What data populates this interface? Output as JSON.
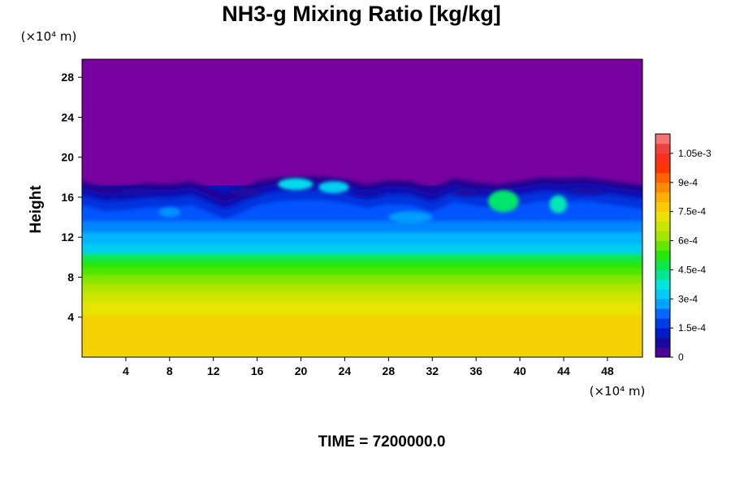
{
  "chart_data": {
    "type": "heatmap",
    "title": "NH3-g Mixing Ratio [kg/kg]",
    "ylabel": "Height",
    "x_unit": "(×10⁴ m)",
    "y_unit": "(×10⁴ m)",
    "footer": "TIME = 7200000.0",
    "x_ticks": [
      "4",
      "8",
      "12",
      "16",
      "20",
      "24",
      "28",
      "32",
      "36",
      "40",
      "44",
      "48"
    ],
    "x_tick_values": [
      4,
      8,
      12,
      16,
      20,
      24,
      28,
      32,
      36,
      40,
      44,
      48
    ],
    "y_ticks": [
      "4",
      "8",
      "12",
      "16",
      "20",
      "24",
      "28"
    ],
    "y_tick_values": [
      4,
      8,
      12,
      16,
      20,
      24,
      28
    ],
    "xlim": [
      0,
      51.2
    ],
    "ylim": [
      0,
      29.8
    ],
    "colorbar": {
      "labels": [
        "0",
        "1.5e-4",
        "3e-4",
        "4.5e-4",
        "6e-4",
        "7.5e-4",
        "9e-4",
        "1.05e-3"
      ],
      "label_values": [
        0,
        0.00015,
        0.0003,
        0.00045,
        0.0006,
        0.00075,
        0.0009,
        0.00105
      ],
      "range": [
        0,
        0.00115
      ],
      "levels": 23
    },
    "layers": [
      {
        "height_from": 0,
        "height_to": 4.3,
        "value": 0.00076
      },
      {
        "height_from": 4.3,
        "height_to": 5.5,
        "value": 0.00072
      },
      {
        "height_from": 5.5,
        "height_to": 6.5,
        "value": 0.00068
      },
      {
        "height_from": 6.5,
        "height_to": 7.4,
        "value": 0.00064
      },
      {
        "height_from": 7.4,
        "height_to": 8.2,
        "value": 0.0006
      },
      {
        "height_from": 8.2,
        "height_to": 9.0,
        "value": 0.00056
      },
      {
        "height_from": 9.0,
        "height_to": 9.7,
        "value": 0.00052
      },
      {
        "height_from": 9.7,
        "height_to": 10.4,
        "value": 0.00047
      },
      {
        "height_from": 10.4,
        "height_to": 11.3,
        "value": 0.00033
      },
      {
        "height_from": 11.3,
        "height_to": 12.5,
        "value": 0.00029
      },
      {
        "height_from": 12.5,
        "height_to": 13.6,
        "value": 0.00025
      },
      {
        "height_from": 13.6,
        "height_to": 14.8,
        "value": 0.00021
      },
      {
        "height_from": 14.8,
        "height_to": 16.0,
        "value": 0.00016
      },
      {
        "height_from": 16.0,
        "height_to": 17.2,
        "value": 0.00011
      },
      {
        "height_from": 17.2,
        "height_to": 29.8,
        "value": 0.0
      }
    ],
    "cloud_top_profile": {
      "x": [
        0,
        2,
        4,
        6,
        8,
        10,
        12,
        13,
        14,
        16,
        18,
        20,
        22,
        24,
        26,
        28,
        30,
        32,
        34,
        36,
        38,
        40,
        42,
        44,
        46,
        48,
        50,
        51.2
      ],
      "height": [
        17.6,
        17.0,
        17.1,
        17.4,
        17.3,
        17.6,
        16.7,
        16.2,
        16.6,
        17.6,
        18.0,
        18.1,
        18.1,
        17.8,
        17.3,
        17.7,
        17.6,
        16.9,
        17.9,
        17.5,
        17.3,
        17.6,
        18.0,
        17.9,
        18.0,
        17.7,
        17.4,
        17.2
      ]
    },
    "features": [
      {
        "x": 19.5,
        "height": 17.3,
        "rx": 1.6,
        "ry": 0.6,
        "value": 0.00035
      },
      {
        "x": 23.0,
        "height": 17.0,
        "rx": 1.4,
        "ry": 0.6,
        "value": 0.00033
      },
      {
        "x": 38.5,
        "height": 15.6,
        "rx": 1.4,
        "ry": 1.1,
        "value": 0.00045
      },
      {
        "x": 43.5,
        "height": 15.3,
        "rx": 0.8,
        "ry": 0.9,
        "value": 0.0004
      },
      {
        "x": 8.0,
        "height": 14.5,
        "rx": 1.0,
        "ry": 0.5,
        "value": 0.00026
      },
      {
        "x": 30.0,
        "height": 14.0,
        "rx": 2.0,
        "ry": 0.6,
        "value": 0.00027
      },
      {
        "x": 5.0,
        "height": 16.5,
        "rx": 1.6,
        "ry": 0.4,
        "value": 8e-05
      },
      {
        "x": 15.0,
        "height": 16.5,
        "rx": 1.5,
        "ry": 0.4,
        "value": 7e-05
      },
      {
        "x": 26.0,
        "height": 16.4,
        "rx": 1.5,
        "ry": 0.4,
        "value": 9e-05
      },
      {
        "x": 35.0,
        "height": 16.5,
        "rx": 1.2,
        "ry": 0.4,
        "value": 7e-05
      },
      {
        "x": 46.0,
        "height": 16.6,
        "rx": 1.8,
        "ry": 0.4,
        "value": 8e-05
      }
    ]
  }
}
